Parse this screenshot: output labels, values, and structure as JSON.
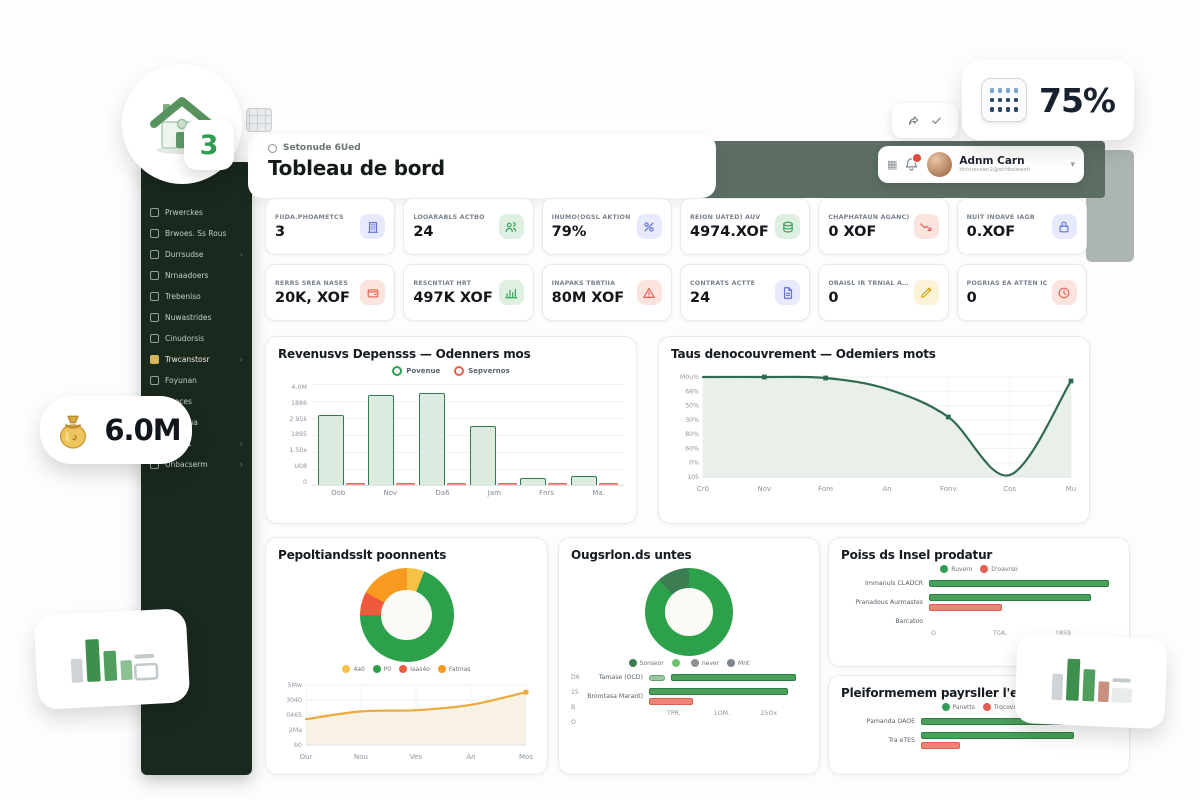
{
  "page": {
    "subtitle": "Setonude 6Ued",
    "title": "Tobleau de bord"
  },
  "header": {
    "user_name": "Adnm Carn",
    "user_email": "tichnevsan2@schbsiwesh"
  },
  "floating": {
    "house_badge": "3",
    "calendar_value": "75%",
    "money_value": "6.0M"
  },
  "colors": {
    "green": "#2f9e54",
    "dark_green_sidebar": "#1a291d",
    "red": "#e2604f",
    "orange": "#f79a1f",
    "yellow": "#f6c344",
    "line_green": "#2e6b4f",
    "trend_orange": "#eca93c"
  },
  "sidebar": {
    "items": [
      {
        "label": "Prwerckes",
        "active": false,
        "chevron": false
      },
      {
        "label": "Brwoes. Ss Rous",
        "active": false,
        "chevron": false
      },
      {
        "label": "Durrsudse",
        "active": false,
        "chevron": true
      },
      {
        "label": "Nrnaadoers",
        "active": false,
        "chevron": false
      },
      {
        "label": "Trebenlso",
        "active": false,
        "chevron": false
      },
      {
        "label": "Nuwastrides",
        "active": false,
        "chevron": false
      },
      {
        "label": "Cinudorsis",
        "active": false,
        "chevron": false
      },
      {
        "label": "Trwcanstosr",
        "active": true,
        "chevron": true
      },
      {
        "label": "Foyunan",
        "active": false,
        "chevron": false
      },
      {
        "label": "Raoces",
        "active": false,
        "chevron": false
      },
      {
        "label": "Doseeua",
        "active": false,
        "chevron": false
      },
      {
        "label": "Pacoa1",
        "active": false,
        "chevron": true
      },
      {
        "label": "Unbacserm",
        "active": false,
        "chevron": true
      }
    ]
  },
  "kpi_rows": [
    [
      {
        "label": "FIIDA.PHOAMETCS",
        "value": "3",
        "icon": "building",
        "tint": "blue"
      },
      {
        "label": "LOOARABLS ACTBO",
        "value": "24",
        "icon": "users",
        "tint": "green"
      },
      {
        "label": "INUMO(OGSL AKTION",
        "value": "79%",
        "icon": "gauge",
        "tint": "blue"
      },
      {
        "label": "REIÓN UATED) AUV",
        "value": "4974.XOF",
        "icon": "coins",
        "tint": "green"
      },
      {
        "label": "CHAPHATAUN AGANC)",
        "value": "0 XOF",
        "icon": "trend-down",
        "tint": "red"
      },
      {
        "label": "NUIT INOAVE IAGB",
        "value": "0.XOF",
        "icon": "lock",
        "tint": "blue"
      }
    ],
    [
      {
        "label": "RERRS SREA NASES",
        "value": "20K, XOF",
        "icon": "wallet",
        "tint": "red"
      },
      {
        "label": "RESCNTIAT HRT",
        "value": "497K XOF",
        "icon": "chart",
        "tint": "green"
      },
      {
        "label": "INAPAKS TBRTIIA",
        "value": "80M XOF",
        "icon": "alert",
        "tint": "red"
      },
      {
        "label": "CONTRATS ACTTE",
        "value": "24",
        "icon": "file",
        "tint": "blue"
      },
      {
        "label": "ORAISL IR TRNIAL ANTIN",
        "value": "0",
        "icon": "pen",
        "tint": "yellow"
      },
      {
        "label": "POGRIAS EA ATTEN IC",
        "value": "0",
        "icon": "clock",
        "tint": "red"
      }
    ]
  ],
  "chart_data": [
    {
      "type": "bar",
      "title": "Revenusvs Depensss — Odenners mos",
      "categories": [
        "Oob",
        "Nov",
        "Da6",
        "Jam",
        "Fnrs",
        "Ma."
      ],
      "series": [
        {
          "name": "Povenue",
          "color": "#2e7d4f",
          "values": [
            2100,
            2700,
            2760,
            1780,
            200,
            260
          ]
        },
        {
          "name": "Sepvernos",
          "color": "#dd6a59",
          "values": [
            60,
            70,
            20,
            50,
            40,
            30
          ]
        }
      ],
      "ylim": [
        0,
        3000
      ],
      "ytick_labels": [
        "4.0M",
        "1886",
        "2.95k",
        "1895",
        "1.50x",
        "U08",
        "0"
      ],
      "grid": true,
      "legend_position": "top"
    },
    {
      "type": "line",
      "title": "Taus denocouvrement — Odemiers mots",
      "x": [
        "Cr0",
        "Nov",
        "Fore",
        "An",
        "Fonv",
        "Cos",
        "Mu"
      ],
      "values": [
        100,
        100,
        99,
        88,
        60,
        2,
        96
      ],
      "ylim": [
        0,
        100
      ],
      "ytick_labels": [
        "M0u%",
        "68%",
        "50%",
        "30%",
        "80%",
        "60%",
        "0%",
        "105"
      ],
      "color": "#2e6b4f",
      "area_color": "#e9f0e9",
      "grid": true
    },
    {
      "type": "pie",
      "title": "Pepoltiandsslt poonnents",
      "slices": [
        {
          "label": "4a0",
          "value": 6,
          "color": "#f6c344"
        },
        {
          "label": "P0",
          "value": 69,
          "color": "#2da04b"
        },
        {
          "label": "Iaas4o",
          "value": 8,
          "color": "#f05a3c"
        },
        {
          "label": "Fatmas",
          "value": 17,
          "color": "#f79a1f"
        }
      ],
      "legend_position": "bottom"
    },
    {
      "type": "line",
      "title": "",
      "x": [
        "Our",
        "Nou",
        "Ves",
        "An",
        "Mos"
      ],
      "values": [
        2.15,
        2.8,
        2.9,
        3.35,
        4.4
      ],
      "ylim": [
        0,
        5
      ],
      "ytick_labels": [
        "5Mw",
        "3040",
        "0465",
        "2Ma",
        "b0"
      ],
      "color": "#eca93c",
      "area_color": "#f7f2e4",
      "grid": true
    },
    {
      "type": "pie",
      "title": "Ougsrlon.ds untes",
      "slices": [
        {
          "label": "",
          "value": 88,
          "color": "#2da04b"
        },
        {
          "label": "Sonseor",
          "value": 12,
          "color": "#3c7d52"
        }
      ],
      "legend": [
        {
          "label": "Sonseor",
          "color": "#3c7d52"
        },
        {
          "label": "",
          "color": "#69c56d"
        },
        {
          "label": "never",
          "color": "#8a9096"
        },
        {
          "label": "Mnt",
          "color": "#7d848b"
        }
      ]
    },
    {
      "type": "hbar",
      "title": "",
      "rows": [
        {
          "label": "Tamase (OCD)",
          "chip": true,
          "green": 92,
          "red": 0
        },
        {
          "label": "Bromtasa Maraot)",
          "chip": false,
          "green": 88,
          "red": 28
        }
      ],
      "xtick_labels": [
        "TPR.",
        "1OM.",
        "25Ox"
      ],
      "ytick_labels": [
        "D6",
        "15",
        "B",
        "O"
      ],
      "max": 100
    },
    {
      "type": "hbar",
      "title": "Poiss ds Insel prodatur",
      "legend": [
        {
          "label": "Ruvero",
          "color": "#2f9e54"
        },
        {
          "label": "D'oavrso",
          "color": "#e2604f"
        }
      ],
      "rows": [
        {
          "label": "Immanuls CLADCR",
          "green": 96,
          "red": 0
        },
        {
          "label": "Pranadous Aurmastes",
          "green": 86,
          "red": 39
        },
        {
          "label": "Barcatoo",
          "green": 0,
          "red": 0
        }
      ],
      "xtick_labels": [
        "O",
        "T0A,",
        "1859"
      ],
      "max": 100
    },
    {
      "type": "hbar",
      "title": "Pleiformemem payrsller l'epe)",
      "legend": [
        {
          "label": "Panetts",
          "color": "#2f9e54"
        },
        {
          "label": "Trqcovs",
          "color": "#e2604f"
        }
      ],
      "rows": [
        {
          "label": "Pamanda OAOE",
          "green": 95,
          "red": 0
        },
        {
          "label": "Tra eTES",
          "green": 78,
          "red": 20
        }
      ],
      "xtick_labels": [],
      "max": 100
    }
  ]
}
